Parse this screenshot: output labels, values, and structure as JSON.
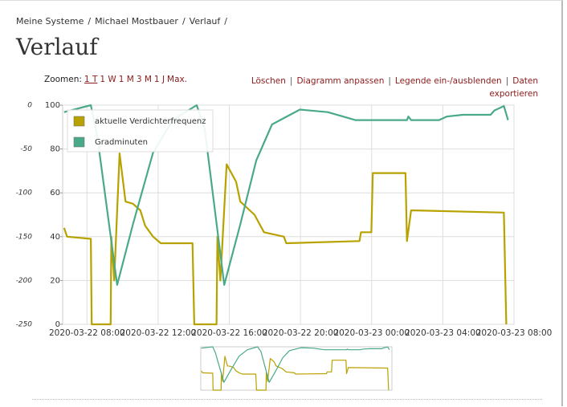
{
  "breadcrumb": [
    "Meine Systeme",
    "Michael Mostbauer",
    "Verlauf"
  ],
  "breadcrumb_separator": "/",
  "heading": "Verlauf",
  "zoom": {
    "label": "Zoomen:",
    "options": [
      "1 T",
      "1 W",
      "1 M",
      "3 M",
      "1 J",
      "Max."
    ],
    "active": 0
  },
  "actions": [
    "Löschen",
    "Diagramm anpassen",
    "Legende ein-/ausblenden",
    "Daten exportieren"
  ],
  "action_separator": "|",
  "chart_data": {
    "type": "line",
    "legend": "upper left",
    "grid": true,
    "xlim": [
      "2020-03-22 06:38",
      "2020-03-23 08:00"
    ],
    "xticks": [
      "2020-03-22 08:00",
      "2020-03-22 12:00",
      "2020-03-22 16:00",
      "2020-03-22 20:00",
      "2020-03-23 00:00",
      "2020-03-23 04:00",
      "2020-03-23 08:00"
    ],
    "ylim": [
      -250,
      0
    ],
    "yticks": [
      0,
      -50,
      -100,
      -150,
      -200,
      -250
    ],
    "y2lim": [
      0,
      100
    ],
    "y2ticks": [
      0,
      20,
      40,
      60,
      80,
      100
    ],
    "series": [
      {
        "name": "aktuelle Verdichterfrequenz",
        "color": "#b8a200",
        "axis": "y2",
        "x": [
          "2020-03-22 06:43",
          "2020-03-22 06:53",
          "2020-03-22 08:13",
          "2020-03-22 08:16",
          "2020-03-22 09:20",
          "2020-03-22 09:22",
          "2020-03-22 09:32",
          "2020-03-22 09:50",
          "2020-03-22 10:10",
          "2020-03-22 10:35",
          "2020-03-22 11:00",
          "2020-03-22 11:16",
          "2020-03-22 11:43",
          "2020-03-22 12:09",
          "2020-03-22 13:56",
          "2020-03-22 14:02",
          "2020-03-22 15:17",
          "2020-03-22 15:20",
          "2020-03-22 15:30",
          "2020-03-22 15:51",
          "2020-03-22 16:23",
          "2020-03-22 16:37",
          "2020-03-22 17:25",
          "2020-03-22 17:57",
          "2020-03-22 19:04",
          "2020-03-22 19:12",
          "2020-03-22 23:19",
          "2020-03-22 23:24",
          "2020-03-22 23:59",
          "2020-03-23 00:04",
          "2020-03-23 01:54",
          "2020-03-23 01:59",
          "2020-03-23 02:13",
          "2020-03-23 07:26",
          "2020-03-23 07:34"
        ],
        "values": [
          44,
          40,
          39,
          0,
          0,
          40,
          20,
          78,
          56,
          55,
          52,
          45,
          40,
          37,
          37,
          0,
          0,
          40,
          20,
          73,
          65,
          56,
          50,
          42,
          40,
          37,
          38,
          42,
          42,
          69,
          69,
          38,
          52,
          51,
          0
        ]
      },
      {
        "name": "Gradminuten",
        "color": "#4aaa88",
        "axis": "y",
        "x": [
          "2020-03-22 06:43",
          "2020-03-22 08:13",
          "2020-03-22 08:35",
          "2020-03-22 09:42",
          "2020-03-22 10:35",
          "2020-03-22 11:43",
          "2020-03-22 12:49",
          "2020-03-22 14:10",
          "2020-03-22 14:37",
          "2020-03-22 15:43",
          "2020-03-22 16:37",
          "2020-03-22 17:31",
          "2020-03-22 18:24",
          "2020-03-22 19:58",
          "2020-03-22 21:32",
          "2020-03-22 23:05",
          "2020-03-23 01:59",
          "2020-03-23 02:04",
          "2020-03-23 02:13",
          "2020-03-23 03:47",
          "2020-03-23 04:13",
          "2020-03-23 05:07",
          "2020-03-23 06:41",
          "2020-03-23 06:54",
          "2020-03-23 07:26",
          "2020-03-23 07:40"
        ],
        "values": [
          -8,
          0,
          -36,
          -205,
          -136,
          -54,
          -17,
          0,
          -27,
          -205,
          -136,
          -63,
          -22,
          -5,
          -8,
          -17,
          -17,
          -13,
          -17,
          -17,
          -13,
          -11,
          -11,
          -6,
          -1,
          -17
        ]
      }
    ]
  }
}
